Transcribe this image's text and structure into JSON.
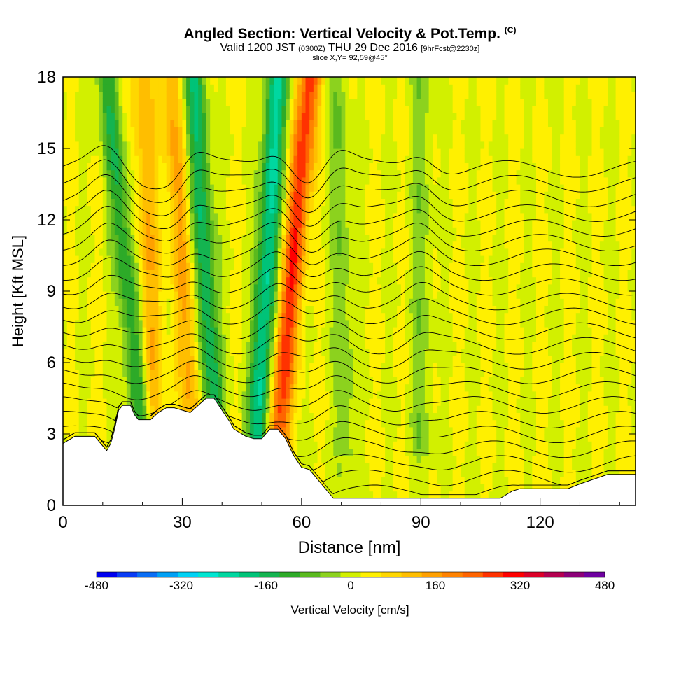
{
  "title": {
    "main": "Angled Section: Vertical Velocity & Pot.Temp.",
    "unit": "(C)",
    "valid_prefix": "Valid 1200 JST",
    "utc": "(0300Z)",
    "date": "THU 29 Dec 2016",
    "forecast": "[9hrFcst@2230z]",
    "slice": "slice X,Y= 92,59@45°"
  },
  "chart_data": {
    "type": "heatmap",
    "xlabel": "Distance [nm]",
    "ylabel": "Height [Kft MSL]",
    "xlim": [
      0,
      144
    ],
    "ylim": [
      0,
      18
    ],
    "x_ticks": [
      0,
      30,
      60,
      90,
      120
    ],
    "y_ticks": [
      0,
      3,
      6,
      9,
      12,
      15,
      18
    ],
    "terrain": {
      "x": [
        0,
        3,
        5,
        8,
        10,
        11,
        12,
        13,
        14,
        15,
        17,
        18,
        19,
        22,
        24,
        26,
        28,
        30,
        32,
        34,
        36,
        38,
        40,
        42,
        43,
        44,
        46,
        48,
        50,
        52,
        54,
        56,
        58,
        60,
        62,
        64,
        66,
        68,
        70,
        72,
        80,
        90,
        100,
        110,
        113,
        115,
        127,
        130,
        137,
        144
      ],
      "height_kft": [
        2.6,
        2.9,
        2.9,
        2.9,
        2.5,
        2.3,
        2.6,
        3.2,
        4.0,
        4.2,
        4.2,
        3.8,
        3.6,
        3.6,
        3.9,
        4.1,
        4.1,
        4.0,
        3.9,
        4.2,
        4.5,
        4.5,
        4.0,
        3.5,
        3.2,
        3.1,
        2.9,
        2.8,
        2.8,
        3.2,
        3.2,
        2.8,
        2.1,
        1.6,
        1.5,
        1.1,
        0.7,
        0.3,
        0.3,
        0.3,
        0.3,
        0.3,
        0.3,
        0.3,
        0.6,
        0.7,
        0.7,
        0.9,
        1.3,
        1.3
      ]
    },
    "updrafts": [
      {
        "x_top": 11,
        "x_bottom": 20,
        "amplitude_cms": -150
      },
      {
        "x_top": 20,
        "x_bottom": 23,
        "amplitude_cms": 110
      },
      {
        "x_top": 33,
        "x_bottom": 38,
        "amplitude_cms": -190
      },
      {
        "x_top": 27,
        "x_bottom": 33,
        "amplitude_cms": 120
      },
      {
        "x_top": 54,
        "x_bottom": 49,
        "amplitude_cms": -240
      },
      {
        "x_top": 62,
        "x_bottom": 54,
        "amplitude_cms": 260
      },
      {
        "x_top": 69,
        "x_bottom": 71,
        "amplitude_cms": -70
      },
      {
        "x_top": 90,
        "x_bottom": 90,
        "amplitude_cms": -60
      }
    ],
    "isentropes_c": {
      "min": 0,
      "max": 44,
      "step": 2
    }
  },
  "colorbar": {
    "title": "Vertical Velocity [cm/s]",
    "min": -480,
    "max": 480,
    "step": 40,
    "tick_labels": [
      "-480",
      "-320",
      "-160",
      "0",
      "160",
      "320",
      "480"
    ],
    "colors": [
      "#0000f0",
      "#0a3cf5",
      "#0a6ef5",
      "#00a0f5",
      "#00d2f5",
      "#00e6d2",
      "#00d7a0",
      "#00c378",
      "#14b450",
      "#2daa28",
      "#5ab91e",
      "#8cd21e",
      "#d2f000",
      "#fff000",
      "#ffd700",
      "#ffbe00",
      "#ffa000",
      "#ff8200",
      "#ff6400",
      "#ff3200",
      "#ff0000",
      "#dc0028",
      "#b40050",
      "#8c0078",
      "#6e00a0"
    ]
  }
}
